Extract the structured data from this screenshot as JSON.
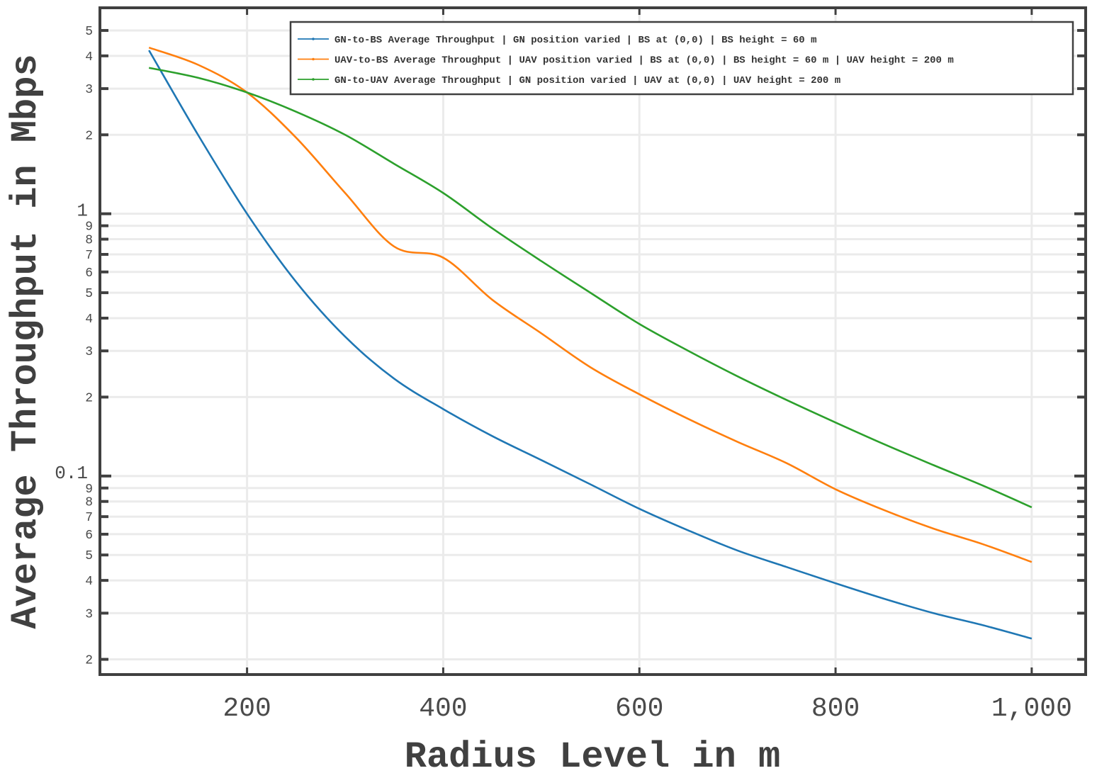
{
  "chart_data": {
    "type": "line",
    "title": "",
    "xlabel": "Radius Level in m",
    "ylabel": "Average Throughput in Mbps",
    "xlim": [
      50,
      1055
    ],
    "ylim": [
      0.0175,
      6.1
    ],
    "y_scale": "log",
    "grid": true,
    "legend_position": "top-right",
    "x_ticks": [
      {
        "value": 200,
        "label": "200"
      },
      {
        "value": 400,
        "label": "400"
      },
      {
        "value": 600,
        "label": "600"
      },
      {
        "value": 800,
        "label": "800"
      },
      {
        "value": 1000,
        "label": "1,000"
      }
    ],
    "y_major_ticks": [
      {
        "value": 0.1,
        "label": "0.1"
      },
      {
        "value": 1,
        "label": "1"
      }
    ],
    "y_minor_ticks": [
      {
        "value": 0.02,
        "label": "2"
      },
      {
        "value": 0.03,
        "label": "3"
      },
      {
        "value": 0.04,
        "label": "4"
      },
      {
        "value": 0.05,
        "label": "5"
      },
      {
        "value": 0.06,
        "label": "6"
      },
      {
        "value": 0.07,
        "label": "7"
      },
      {
        "value": 0.08,
        "label": "8"
      },
      {
        "value": 0.09,
        "label": "9"
      },
      {
        "value": 0.2,
        "label": "2"
      },
      {
        "value": 0.3,
        "label": "3"
      },
      {
        "value": 0.4,
        "label": "4"
      },
      {
        "value": 0.5,
        "label": "5"
      },
      {
        "value": 0.6,
        "label": "6"
      },
      {
        "value": 0.7,
        "label": "7"
      },
      {
        "value": 0.8,
        "label": "8"
      },
      {
        "value": 0.9,
        "label": "9"
      },
      {
        "value": 2,
        "label": "2"
      },
      {
        "value": 3,
        "label": "3"
      },
      {
        "value": 4,
        "label": "4"
      },
      {
        "value": 5,
        "label": "5"
      }
    ],
    "x": [
      100,
      150,
      200,
      250,
      300,
      350,
      400,
      450,
      500,
      550,
      600,
      650,
      700,
      750,
      800,
      850,
      900,
      950,
      1000
    ],
    "series": [
      {
        "name": "GN-to-BS Average Throughput | GN position varied | BS at (0,0) | BS height = 60 m",
        "color": "#1f77b4",
        "values": [
          4.2,
          2.0,
          1.0,
          0.55,
          0.34,
          0.235,
          0.18,
          0.142,
          0.115,
          0.093,
          0.075,
          0.062,
          0.052,
          0.045,
          0.039,
          0.034,
          0.03,
          0.027,
          0.024
        ]
      },
      {
        "name": "UAV-to-BS Average Throughput | UAV position varied | BS at (0,0) | BS height = 60 m | UAV height = 200 m",
        "color": "#ff7f0e",
        "values": [
          4.3,
          3.7,
          2.9,
          1.95,
          1.2,
          0.75,
          0.68,
          0.47,
          0.35,
          0.26,
          0.205,
          0.165,
          0.135,
          0.112,
          0.089,
          0.074,
          0.063,
          0.055,
          0.047
        ]
      },
      {
        "name": "GN-to-UAV Average Throughput | GN position varied | UAV at (0,0) | UAV height = 200 m",
        "color": "#2ca02c",
        "values": [
          3.6,
          3.3,
          2.9,
          2.45,
          2.0,
          1.55,
          1.2,
          0.88,
          0.66,
          0.5,
          0.38,
          0.3,
          0.24,
          0.195,
          0.16,
          0.132,
          0.11,
          0.092,
          0.076
        ]
      }
    ]
  }
}
